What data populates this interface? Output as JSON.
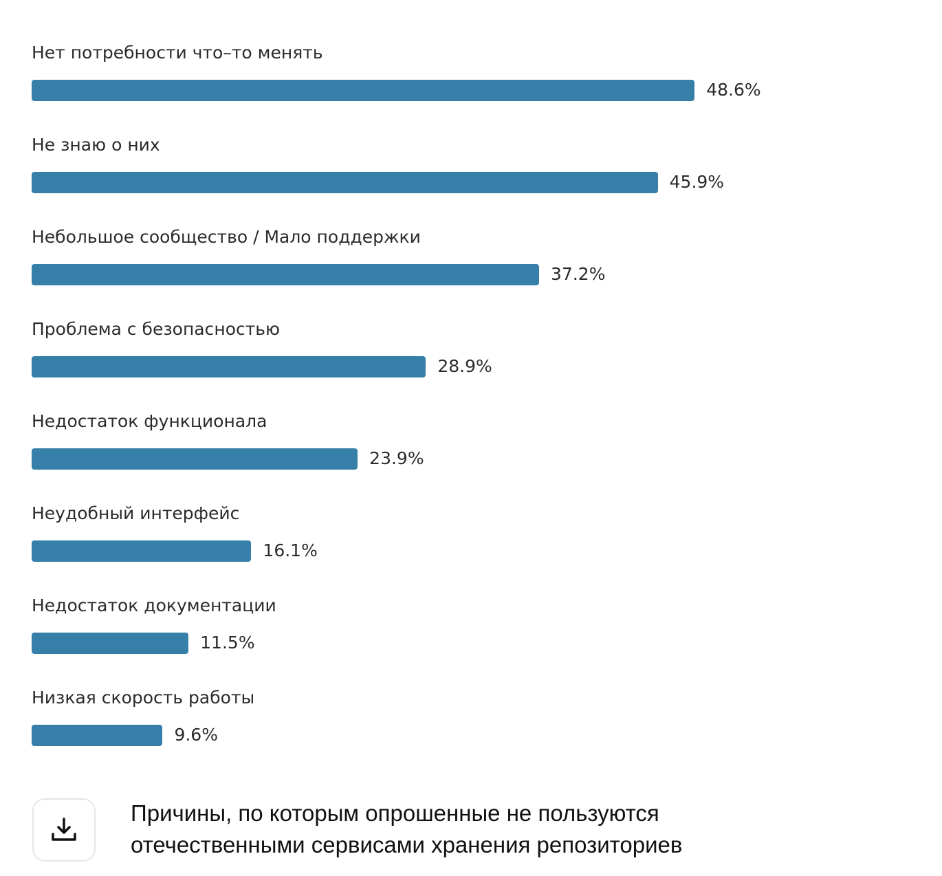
{
  "chart_data": {
    "type": "bar",
    "orientation": "horizontal",
    "title": "Причины, по которым опрошенные не пользуются отечественными сервисами хранения репозиториев",
    "categories": [
      "Нет потребности что–то менять",
      "Не знаю о них",
      "Небольшое сообщество / Мало поддержки",
      "Проблема с безопасностью",
      "Недостаток функционала",
      "Неудобный интерфейс",
      "Недостаток документации",
      "Низкая скорость работы"
    ],
    "values": [
      48.6,
      45.9,
      37.2,
      28.9,
      23.9,
      16.1,
      11.5,
      9.6
    ],
    "value_labels": [
      "48.6%",
      "45.9%",
      "37.2%",
      "28.9%",
      "23.9%",
      "16.1%",
      "11.5%",
      "9.6%"
    ],
    "unit": "%",
    "bar_color": "#357fa9"
  },
  "caption": {
    "line1": "Причины, по которым опрошенные не пользуются",
    "line2": "отечественными сервисами хранения репозиториев"
  },
  "download_icon": "download-icon"
}
